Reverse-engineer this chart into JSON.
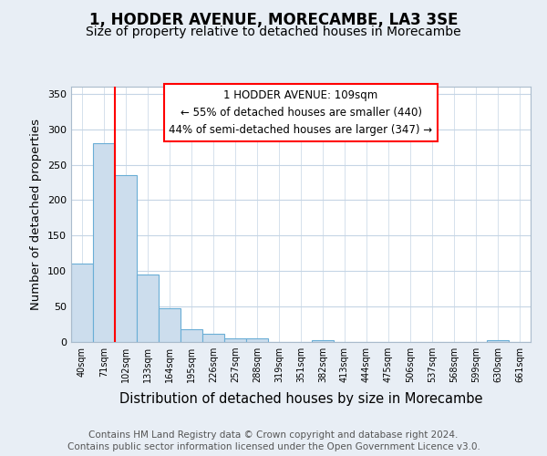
{
  "title": "1, HODDER AVENUE, MORECAMBE, LA3 3SE",
  "subtitle": "Size of property relative to detached houses in Morecambe",
  "xlabel": "Distribution of detached houses by size in Morecambe",
  "ylabel": "Number of detached properties",
  "categories": [
    "40sqm",
    "71sqm",
    "102sqm",
    "133sqm",
    "164sqm",
    "195sqm",
    "226sqm",
    "257sqm",
    "288sqm",
    "319sqm",
    "351sqm",
    "382sqm",
    "413sqm",
    "444sqm",
    "475sqm",
    "506sqm",
    "537sqm",
    "568sqm",
    "599sqm",
    "630sqm",
    "661sqm"
  ],
  "values": [
    110,
    280,
    235,
    95,
    48,
    18,
    12,
    5,
    5,
    0,
    0,
    3,
    0,
    0,
    0,
    0,
    0,
    0,
    0,
    3,
    0
  ],
  "bar_color": "#ccdded",
  "bar_edge_color": "#6aaed6",
  "red_line_index": 2,
  "annotation_text": "1 HODDER AVENUE: 109sqm\n← 55% of detached houses are smaller (440)\n44% of semi-detached houses are larger (347) →",
  "ylim_max": 360,
  "yticks": [
    0,
    50,
    100,
    150,
    200,
    250,
    300,
    350
  ],
  "footer_line1": "Contains HM Land Registry data © Crown copyright and database right 2024.",
  "footer_line2": "Contains public sector information licensed under the Open Government Licence v3.0.",
  "bg_color": "#e8eef5",
  "plot_bg": "#ffffff",
  "grid_color": "#c5d5e5"
}
